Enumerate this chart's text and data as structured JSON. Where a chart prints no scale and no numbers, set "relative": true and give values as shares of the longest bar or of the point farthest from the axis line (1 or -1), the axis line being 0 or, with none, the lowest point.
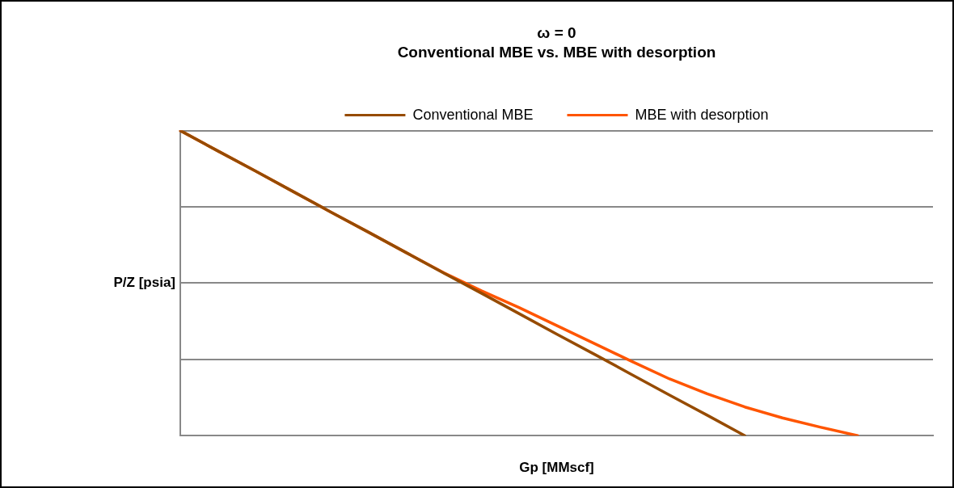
{
  "chart_data": {
    "type": "line",
    "title": "ω = 0",
    "subtitle": "Conventional MBE vs. MBE with desorption",
    "xlabel": "Gp [MMscf]",
    "ylabel": "P/Z [psia]",
    "relative": true,
    "grid": "y",
    "legend": "top",
    "marker": "none",
    "line_style": "solid",
    "categories": [
      null,
      null,
      null,
      null,
      null,
      null,
      null,
      null,
      null,
      null,
      null,
      null,
      null,
      null,
      null,
      null,
      null,
      null,
      null,
      null,
      null
    ],
    "series": [
      {
        "name": "Conventional MBE",
        "color": "#964b00",
        "values": [
          1,
          0.933,
          0.867,
          0.8,
          0.733,
          0.667,
          0.6,
          0.533,
          0.467,
          0.4,
          0.333,
          0.267,
          0.2,
          0.133,
          0.067,
          0,
          null,
          null,
          null,
          null,
          null
        ]
      },
      {
        "name": "MBE with desorption",
        "color": "#ff5500",
        "values": [
          1,
          0.933,
          0.867,
          0.8,
          0.733,
          0.667,
          0.6,
          0.534,
          0.475,
          0.42,
          0.361,
          0.302,
          0.243,
          0.186,
          0.137,
          0.094,
          0.058,
          0.028,
          0,
          null,
          null
        ]
      }
    ]
  }
}
